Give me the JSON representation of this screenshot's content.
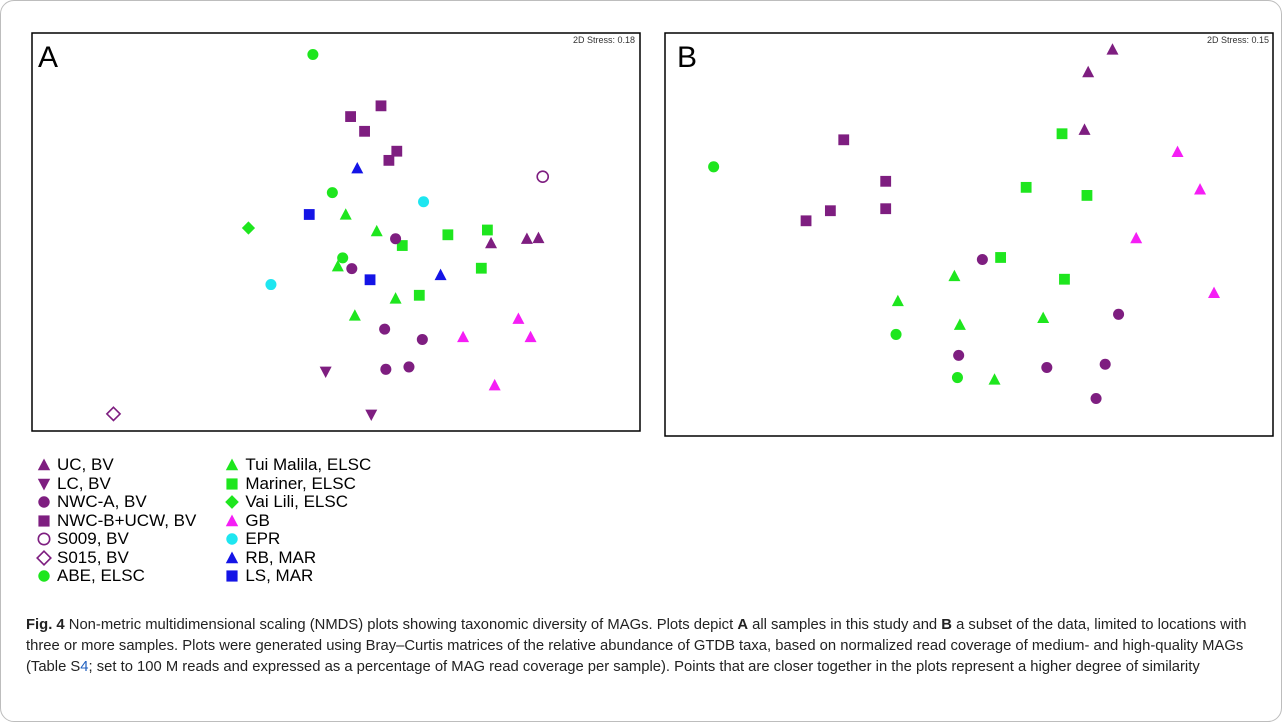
{
  "legend": {
    "columns": [
      [
        {
          "label": "UC, BV",
          "group": "UC, BV"
        },
        {
          "label": "LC, BV",
          "group": "LC, BV"
        },
        {
          "label": "NWC-A, BV",
          "group": "NWC-A, BV"
        },
        {
          "label": "NWC-B+UCW, BV",
          "group": "NWC-B+UCW, BV"
        },
        {
          "label": "S009, BV",
          "group": "S009, BV"
        },
        {
          "label": "S015, BV",
          "group": "S015, BV"
        },
        {
          "label": "ABE, ELSC",
          "group": "ABE, ELSC"
        }
      ],
      [
        {
          "label": "Tui Malila, ELSC",
          "group": "Tui Malila, ELSC"
        },
        {
          "label": "Mariner, ELSC",
          "group": "Mariner, ELSC"
        },
        {
          "label": "Vai Lili, ELSC",
          "group": "Vai Lili, ELSC"
        },
        {
          "label": "GB",
          "group": "GB"
        },
        {
          "label": "EPR",
          "group": "EPR"
        },
        {
          "label": "RB, MAR",
          "group": "RB, MAR"
        },
        {
          "label": "LS, MAR",
          "group": "LS, MAR"
        }
      ]
    ]
  },
  "caption": {
    "figure_label": "Fig. 4",
    "text_1": "  Non-metric multidimensional scaling (NMDS) plots showing taxonomic diversity of MAGs. Plots depict ",
    "bold_a": "A",
    "text_2": " all samples in this study and ",
    "bold_b": "B",
    "text_3": " a subset of the data, limited to locations with three or more samples. Plots were generated using Bray–Curtis matrices of the relative abundance of GTDB taxa, based on normalized read coverage of medium- and high-quality MAGs (Table S",
    "table_ref": "4",
    "text_4": "; set to 100 M reads and expressed as a percentage of MAG read coverage per sample). Points that are closer together in the plots represent a higher degree of similarity"
  },
  "chart_data": {
    "groups": {
      "UC, BV": {
        "marker": "triangle-up",
        "color": "#7e1e80",
        "filled": true
      },
      "LC, BV": {
        "marker": "triangle-down",
        "color": "#7e1e80",
        "filled": true
      },
      "NWC-A, BV": {
        "marker": "circle",
        "color": "#7e1e80",
        "filled": true
      },
      "NWC-B+UCW, BV": {
        "marker": "square",
        "color": "#7e1e80",
        "filled": true
      },
      "S009, BV": {
        "marker": "circle",
        "color": "#7e1e80",
        "filled": false
      },
      "S015, BV": {
        "marker": "diamond",
        "color": "#7e1e80",
        "filled": false
      },
      "ABE, ELSC": {
        "marker": "circle",
        "color": "#1ee61e",
        "filled": true
      },
      "Tui Malila, ELSC": {
        "marker": "triangle-up",
        "color": "#1ee61e",
        "filled": true
      },
      "Mariner, ELSC": {
        "marker": "square",
        "color": "#1ee61e",
        "filled": true
      },
      "Vai Lili, ELSC": {
        "marker": "diamond",
        "color": "#1ee61e",
        "filled": true
      },
      "GB": {
        "marker": "triangle-up",
        "color": "#f51ef5",
        "filled": true
      },
      "EPR": {
        "marker": "circle",
        "color": "#1ee6f0",
        "filled": true
      },
      "RB, MAR": {
        "marker": "triangle-up",
        "color": "#1414e6",
        "filled": true
      },
      "LS, MAR": {
        "marker": "square",
        "color": "#1414e6",
        "filled": true
      }
    },
    "plots": [
      {
        "type": "scatter",
        "panel": "A",
        "stress_label": "2D Stress: 0.18",
        "xlim": [
          0,
          100
        ],
        "ylim": [
          0,
          100
        ],
        "points": [
          {
            "g": "ABE, ELSC",
            "x": 46.2,
            "y": 94.6
          },
          {
            "g": "ABE, ELSC",
            "x": 49.4,
            "y": 59.9
          },
          {
            "g": "ABE, ELSC",
            "x": 51.1,
            "y": 43.5
          },
          {
            "g": "NWC-B+UCW, BV",
            "x": 57.4,
            "y": 81.7
          },
          {
            "g": "NWC-B+UCW, BV",
            "x": 52.4,
            "y": 79.0
          },
          {
            "g": "NWC-B+UCW, BV",
            "x": 54.7,
            "y": 75.3
          },
          {
            "g": "NWC-B+UCW, BV",
            "x": 60.0,
            "y": 70.3
          },
          {
            "g": "NWC-B+UCW, BV",
            "x": 58.7,
            "y": 68.0
          },
          {
            "g": "RB, MAR",
            "x": 53.5,
            "y": 66.0
          },
          {
            "g": "RB, MAR",
            "x": 67.2,
            "y": 39.2
          },
          {
            "g": "S009, BV",
            "x": 84.0,
            "y": 63.9
          },
          {
            "g": "LS, MAR",
            "x": 45.6,
            "y": 54.4
          },
          {
            "g": "LS, MAR",
            "x": 55.6,
            "y": 38.0
          },
          {
            "g": "EPR",
            "x": 64.4,
            "y": 57.6
          },
          {
            "g": "EPR",
            "x": 39.3,
            "y": 36.8
          },
          {
            "g": "Tui Malila, ELSC",
            "x": 51.6,
            "y": 54.4
          },
          {
            "g": "Tui Malila, ELSC",
            "x": 56.7,
            "y": 50.2
          },
          {
            "g": "Tui Malila, ELSC",
            "x": 50.3,
            "y": 41.4
          },
          {
            "g": "Tui Malila, ELSC",
            "x": 59.8,
            "y": 33.3
          },
          {
            "g": "Tui Malila, ELSC",
            "x": 53.1,
            "y": 29.0
          },
          {
            "g": "Vai Lili, ELSC",
            "x": 35.6,
            "y": 51.0
          },
          {
            "g": "Mariner, ELSC",
            "x": 74.9,
            "y": 50.5
          },
          {
            "g": "Mariner, ELSC",
            "x": 68.4,
            "y": 49.3
          },
          {
            "g": "Mariner, ELSC",
            "x": 60.9,
            "y": 46.6
          },
          {
            "g": "Mariner, ELSC",
            "x": 73.9,
            "y": 40.9
          },
          {
            "g": "Mariner, ELSC",
            "x": 63.7,
            "y": 34.1
          },
          {
            "g": "NWC-A, BV",
            "x": 59.8,
            "y": 48.3
          },
          {
            "g": "NWC-A, BV",
            "x": 52.6,
            "y": 40.8
          },
          {
            "g": "NWC-A, BV",
            "x": 58.0,
            "y": 25.6
          },
          {
            "g": "NWC-A, BV",
            "x": 64.2,
            "y": 23.0
          },
          {
            "g": "NWC-A, BV",
            "x": 58.2,
            "y": 15.5
          },
          {
            "g": "NWC-A, BV",
            "x": 62.0,
            "y": 16.1
          },
          {
            "g": "UC, BV",
            "x": 75.5,
            "y": 47.2
          },
          {
            "g": "UC, BV",
            "x": 81.4,
            "y": 48.3
          },
          {
            "g": "UC, BV",
            "x": 83.3,
            "y": 48.5
          },
          {
            "g": "GB",
            "x": 80.0,
            "y": 28.2
          },
          {
            "g": "GB",
            "x": 70.9,
            "y": 23.6
          },
          {
            "g": "GB",
            "x": 82.0,
            "y": 23.6
          },
          {
            "g": "GB",
            "x": 76.1,
            "y": 11.5
          },
          {
            "g": "LC, BV",
            "x": 48.3,
            "y": 14.9
          },
          {
            "g": "LC, BV",
            "x": 55.8,
            "y": 4.1
          },
          {
            "g": "S015, BV",
            "x": 13.4,
            "y": 4.3
          }
        ]
      },
      {
        "type": "scatter",
        "panel": "B",
        "stress_label": "2D Stress: 0.15",
        "xlim": [
          0,
          100
        ],
        "ylim": [
          0,
          100
        ],
        "points": [
          {
            "g": "UC, BV",
            "x": 73.6,
            "y": 95.9
          },
          {
            "g": "UC, BV",
            "x": 69.6,
            "y": 90.3
          },
          {
            "g": "UC, BV",
            "x": 69.0,
            "y": 76.0
          },
          {
            "g": "Mariner, ELSC",
            "x": 65.3,
            "y": 75.0
          },
          {
            "g": "Mariner, ELSC",
            "x": 59.4,
            "y": 61.7
          },
          {
            "g": "Mariner, ELSC",
            "x": 69.4,
            "y": 59.7
          },
          {
            "g": "Mariner, ELSC",
            "x": 55.2,
            "y": 44.3
          },
          {
            "g": "Mariner, ELSC",
            "x": 65.7,
            "y": 38.9
          },
          {
            "g": "NWC-B+UCW, BV",
            "x": 29.4,
            "y": 73.5
          },
          {
            "g": "NWC-B+UCW, BV",
            "x": 36.3,
            "y": 63.2
          },
          {
            "g": "NWC-B+UCW, BV",
            "x": 36.3,
            "y": 56.4
          },
          {
            "g": "NWC-B+UCW, BV",
            "x": 27.2,
            "y": 55.9
          },
          {
            "g": "NWC-B+UCW, BV",
            "x": 23.2,
            "y": 53.4
          },
          {
            "g": "ABE, ELSC",
            "x": 8.0,
            "y": 66.8
          },
          {
            "g": "ABE, ELSC",
            "x": 38.0,
            "y": 25.2
          },
          {
            "g": "ABE, ELSC",
            "x": 48.1,
            "y": 14.5
          },
          {
            "g": "GB",
            "x": 84.3,
            "y": 70.5
          },
          {
            "g": "GB",
            "x": 88.0,
            "y": 61.2
          },
          {
            "g": "GB",
            "x": 77.5,
            "y": 49.1
          },
          {
            "g": "GB",
            "x": 90.3,
            "y": 35.5
          },
          {
            "g": "NWC-A, BV",
            "x": 52.2,
            "y": 43.8
          },
          {
            "g": "NWC-A, BV",
            "x": 74.6,
            "y": 30.2
          },
          {
            "g": "NWC-A, BV",
            "x": 48.3,
            "y": 20.0
          },
          {
            "g": "NWC-A, BV",
            "x": 62.8,
            "y": 17.0
          },
          {
            "g": "NWC-A, BV",
            "x": 72.4,
            "y": 17.8
          },
          {
            "g": "NWC-A, BV",
            "x": 70.9,
            "y": 9.3
          },
          {
            "g": "Tui Malila, ELSC",
            "x": 47.6,
            "y": 39.7
          },
          {
            "g": "Tui Malila, ELSC",
            "x": 38.3,
            "y": 33.5
          },
          {
            "g": "Tui Malila, ELSC",
            "x": 62.2,
            "y": 29.3
          },
          {
            "g": "Tui Malila, ELSC",
            "x": 48.5,
            "y": 27.6
          },
          {
            "g": "Tui Malila, ELSC",
            "x": 54.2,
            "y": 14.0
          }
        ]
      }
    ]
  }
}
